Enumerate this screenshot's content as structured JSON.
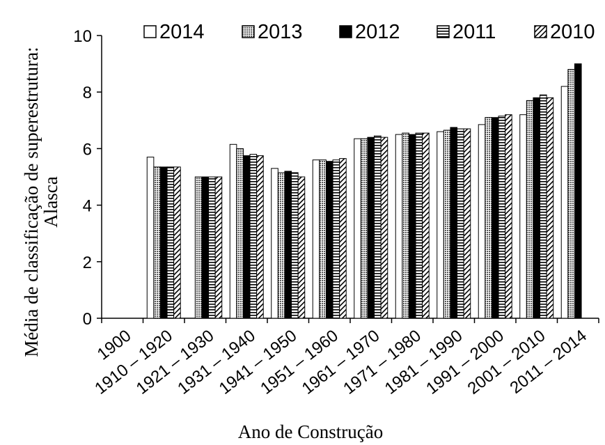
{
  "chart_data": {
    "type": "bar",
    "title": "",
    "xlabel": "Ano de Construção",
    "ylabel_lines": [
      "Média de classificação de superestrutura:",
      "Alasca"
    ],
    "ylim": [
      0,
      10
    ],
    "yticks": [
      0,
      2,
      4,
      6,
      8,
      10
    ],
    "grid": false,
    "legend_position": "top",
    "categories": [
      "1900",
      "1910 – 1920",
      "1921 – 1930",
      "1931 – 1940",
      "1941 – 1950",
      "1951 – 1960",
      "1961 – 1970",
      "1971 – 1980",
      "1981 – 1990",
      "1991 – 2000",
      "2001 – 2010",
      "2011 – 2014"
    ],
    "series": [
      {
        "name": "2014",
        "pattern": "white",
        "values": [
          null,
          5.7,
          null,
          6.15,
          5.3,
          5.6,
          6.35,
          6.5,
          6.6,
          6.85,
          7.2,
          8.2
        ]
      },
      {
        "name": "2013",
        "pattern": "dots",
        "values": [
          null,
          5.35,
          5.0,
          6.0,
          5.15,
          5.6,
          6.35,
          6.55,
          6.65,
          7.1,
          7.7,
          8.8
        ]
      },
      {
        "name": "2012",
        "pattern": "black",
        "values": [
          null,
          5.35,
          5.0,
          5.75,
          5.2,
          5.55,
          6.4,
          6.5,
          6.75,
          7.1,
          7.8,
          9.0
        ]
      },
      {
        "name": "2011",
        "pattern": "hlines",
        "values": [
          null,
          5.35,
          5.0,
          5.8,
          5.15,
          5.6,
          6.45,
          6.55,
          6.7,
          7.15,
          7.9,
          null
        ]
      },
      {
        "name": "2010",
        "pattern": "diag",
        "values": [
          null,
          5.35,
          5.0,
          5.75,
          5.0,
          5.65,
          6.4,
          6.55,
          6.7,
          7.2,
          7.8,
          null
        ]
      }
    ]
  }
}
